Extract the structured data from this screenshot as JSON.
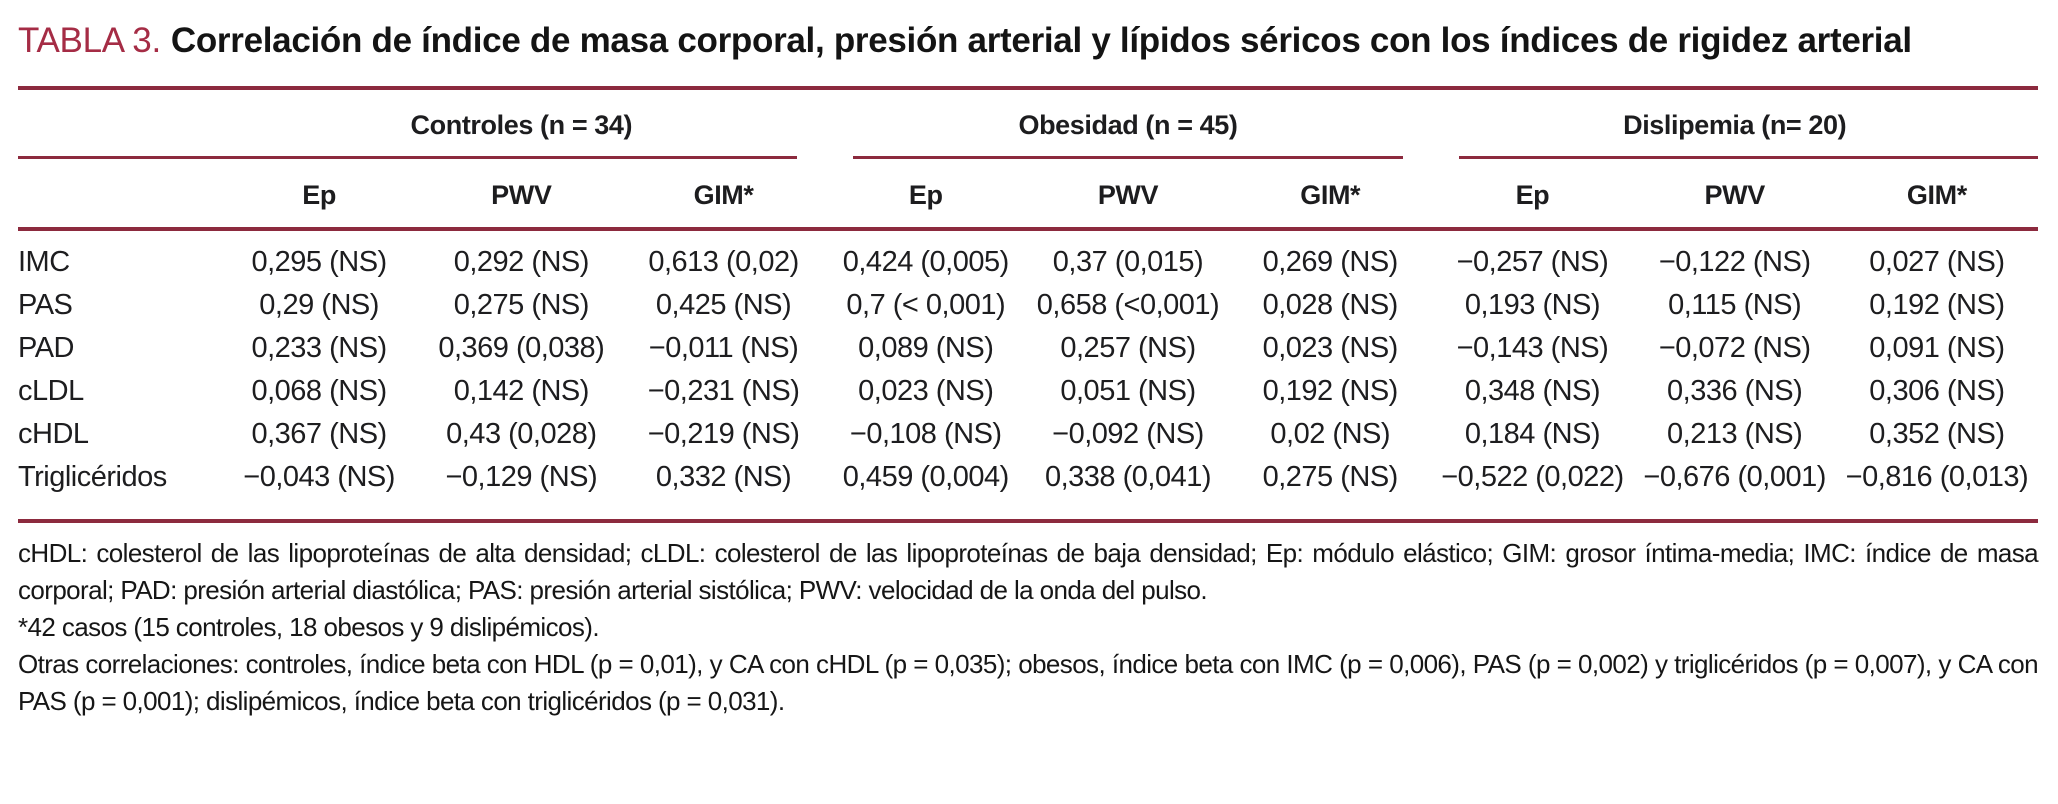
{
  "colors": {
    "accent_maroon_text": "#a52c45",
    "rule_maroon": "#8c2a3e",
    "body_text": "#1d1d1f",
    "background": "#ffffff"
  },
  "title": {
    "tag": "TABLA 3.",
    "text": "Correlación de índice de masa corporal, presión arterial y lípidos séricos con los índices de rigidez arterial"
  },
  "table": {
    "groups": [
      {
        "label": "Controles (n = 34)"
      },
      {
        "label": "Obesidad (n = 45)"
      },
      {
        "label": "Dislipemia (n= 20)"
      }
    ],
    "subheaders": [
      "Ep",
      "PWV",
      "GIM*"
    ],
    "rows": [
      {
        "label": "IMC",
        "values": [
          "0,295 (NS)",
          "0,292 (NS)",
          "0,613 (0,02)",
          "0,424 (0,005)",
          "0,37 (0,015)",
          "0,269 (NS)",
          "−0,257 (NS)",
          "−0,122 (NS)",
          "0,027 (NS)"
        ]
      },
      {
        "label": "PAS",
        "values": [
          "0,29 (NS)",
          "0,275 (NS)",
          "0,425 (NS)",
          "0,7 (< 0,001)",
          "0,658 (<0,001)",
          "0,028 (NS)",
          "0,193 (NS)",
          "0,115 (NS)",
          "0,192 (NS)"
        ]
      },
      {
        "label": "PAD",
        "values": [
          "0,233 (NS)",
          "0,369 (0,038)",
          "−0,011 (NS)",
          "0,089 (NS)",
          "0,257 (NS)",
          "0,023 (NS)",
          "−0,143 (NS)",
          "−0,072 (NS)",
          "0,091 (NS)"
        ]
      },
      {
        "label": "cLDL",
        "values": [
          "0,068 (NS)",
          "0,142 (NS)",
          "−0,231 (NS)",
          "0,023 (NS)",
          "0,051 (NS)",
          "0,192 (NS)",
          "0,348 (NS)",
          "0,336 (NS)",
          "0,306 (NS)"
        ]
      },
      {
        "label": "cHDL",
        "values": [
          "0,367 (NS)",
          "0,43 (0,028)",
          "−0,219 (NS)",
          "−0,108 (NS)",
          "−0,092 (NS)",
          "0,02 (NS)",
          "0,184 (NS)",
          "0,213 (NS)",
          "0,352 (NS)"
        ]
      },
      {
        "label": "Triglicéridos",
        "values": [
          "−0,043 (NS)",
          "−0,129 (NS)",
          "0,332 (NS)",
          "0,459 (0,004)",
          "0,338 (0,041)",
          "0,275 (NS)",
          "−0,522 (0,022)",
          "−0,676 (0,001)",
          "−0,816 (0,013)"
        ]
      }
    ]
  },
  "footnotes": [
    "cHDL: colesterol de las lipoproteínas de alta densidad; cLDL: colesterol de las lipoproteínas de baja densidad; Ep: módulo elástico; GIM: grosor íntima-media; IMC: índice de masa corporal; PAD: presión arterial diastólica; PAS: presión arterial sistólica; PWV: velocidad de la onda del pulso.",
    "*42 casos (15 controles, 18 obesos y 9 dislipémicos).",
    "Otras correlaciones: controles, índice beta con HDL (p = 0,01), y CA con cHDL (p = 0,035); obesos, índice beta con IMC (p = 0,006), PAS (p = 0,002) y triglicéridos (p = 0,007), y CA con PAS (p = 0,001); dislipémicos, índice beta con triglicéridos (p = 0,031)."
  ]
}
